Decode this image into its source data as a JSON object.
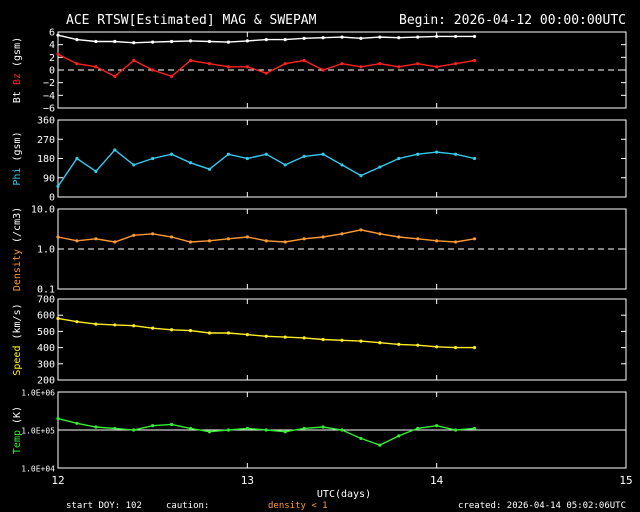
{
  "header": {
    "title": "ACE RTSW[Estimated] MAG & SWEPAM",
    "begin": "Begin: 2026-04-12 00:00:00UTC"
  },
  "footer": {
    "start_doy": "start DOY: 102",
    "caution": "caution:",
    "density_note": "density < 1",
    "created": "created: 2026-04-14 05:02:06UTC",
    "xlabel": "UTC(days)"
  },
  "colors": {
    "bt": "#ffffff",
    "bz": "#ff2020",
    "phi": "#33ccee",
    "density": "#ff9933",
    "speed": "#ffee22",
    "temp": "#33ee33",
    "axis": "#ffffff",
    "dash": "#ffffff"
  },
  "chart_data": [
    {
      "type": "line",
      "name": "mag",
      "ylabel_parts": [
        "Bt",
        "Bz",
        "(gsm)"
      ],
      "ylim": [
        -6,
        6
      ],
      "yticks": [
        -6,
        -4,
        -2,
        0,
        2,
        4,
        6
      ],
      "ytick_labels": [
        "−6",
        "−4",
        "−2",
        "0",
        "2",
        "4",
        "6"
      ],
      "reference_line": 0,
      "series": [
        {
          "name": "Bt",
          "x": [
            12.0,
            12.1,
            12.2,
            12.3,
            12.4,
            12.5,
            12.6,
            12.7,
            12.8,
            12.9,
            13.0,
            13.1,
            13.2,
            13.3,
            13.4,
            13.5,
            13.6,
            13.7,
            13.8,
            13.9,
            14.0,
            14.1,
            14.2
          ],
          "values": [
            5.5,
            4.8,
            4.5,
            4.5,
            4.3,
            4.4,
            4.5,
            4.6,
            4.5,
            4.4,
            4.6,
            4.8,
            4.8,
            5.0,
            5.1,
            5.2,
            5.0,
            5.2,
            5.1,
            5.2,
            5.3,
            5.3,
            5.3
          ]
        },
        {
          "name": "Bz",
          "x": [
            12.0,
            12.1,
            12.2,
            12.3,
            12.4,
            12.5,
            12.6,
            12.7,
            12.8,
            12.9,
            13.0,
            13.1,
            13.2,
            13.3,
            13.4,
            13.5,
            13.6,
            13.7,
            13.8,
            13.9,
            14.0,
            14.1,
            14.2
          ],
          "values": [
            2.5,
            1.0,
            0.5,
            -1.0,
            1.5,
            0.0,
            -1.0,
            1.5,
            1.0,
            0.5,
            0.5,
            -0.5,
            1.0,
            1.5,
            0.0,
            1.0,
            0.5,
            1.0,
            0.5,
            1.0,
            0.5,
            1.0,
            1.5
          ]
        }
      ]
    },
    {
      "type": "line",
      "name": "phi",
      "ylabel_parts": [
        "Phi",
        "(gsm)"
      ],
      "ylim": [
        0,
        360
      ],
      "yticks": [
        0,
        90,
        180,
        270,
        360
      ],
      "ytick_labels": [
        "0",
        "90",
        "180",
        "270",
        "360"
      ],
      "series": [
        {
          "name": "Phi",
          "x": [
            12.0,
            12.1,
            12.2,
            12.3,
            12.4,
            12.5,
            12.6,
            12.7,
            12.8,
            12.9,
            13.0,
            13.1,
            13.2,
            13.3,
            13.4,
            13.5,
            13.6,
            13.7,
            13.8,
            13.9,
            14.0,
            14.1,
            14.2
          ],
          "values": [
            50,
            180,
            120,
            220,
            150,
            180,
            200,
            160,
            130,
            200,
            180,
            200,
            150,
            190,
            200,
            150,
            100,
            140,
            180,
            200,
            210,
            200,
            180
          ]
        }
      ]
    },
    {
      "type": "line",
      "name": "density",
      "ylabel_parts": [
        "Density",
        "(/cm3)"
      ],
      "scale": "log",
      "ylim": [
        0.1,
        10.0
      ],
      "yticks": [
        0.1,
        1.0,
        10.0
      ],
      "ytick_labels": [
        "0.1",
        "1.0",
        "10.0"
      ],
      "reference_line": 1.0,
      "series": [
        {
          "name": "Density",
          "x": [
            12.0,
            12.1,
            12.2,
            12.3,
            12.4,
            12.5,
            12.6,
            12.7,
            12.8,
            12.9,
            13.0,
            13.1,
            13.2,
            13.3,
            13.4,
            13.5,
            13.6,
            13.7,
            13.8,
            13.9,
            14.0,
            14.1,
            14.2
          ],
          "values": [
            2.0,
            1.6,
            1.8,
            1.5,
            2.2,
            2.4,
            2.0,
            1.5,
            1.6,
            1.8,
            2.0,
            1.6,
            1.5,
            1.8,
            2.0,
            2.4,
            3.0,
            2.4,
            2.0,
            1.8,
            1.6,
            1.5,
            1.8
          ]
        }
      ]
    },
    {
      "type": "line",
      "name": "speed",
      "ylabel_parts": [
        "Speed",
        "(km/s)"
      ],
      "ylim": [
        200,
        700
      ],
      "yticks": [
        200,
        300,
        400,
        500,
        600,
        700
      ],
      "ytick_labels": [
        "200",
        "300",
        "400",
        "500",
        "600",
        "700"
      ],
      "series": [
        {
          "name": "Speed",
          "x": [
            12.0,
            12.1,
            12.2,
            12.3,
            12.4,
            12.5,
            12.6,
            12.7,
            12.8,
            12.9,
            13.0,
            13.1,
            13.2,
            13.3,
            13.4,
            13.5,
            13.6,
            13.7,
            13.8,
            13.9,
            14.0,
            14.1,
            14.2
          ],
          "values": [
            580,
            560,
            545,
            540,
            535,
            520,
            510,
            505,
            490,
            490,
            480,
            470,
            465,
            460,
            450,
            445,
            440,
            430,
            420,
            415,
            405,
            400,
            400
          ]
        }
      ]
    },
    {
      "type": "line",
      "name": "temp",
      "ylabel_parts": [
        "Temp",
        "(K)"
      ],
      "scale": "log",
      "ylim": [
        10000,
        1000000
      ],
      "yticks": [
        10000,
        100000,
        1000000
      ],
      "ytick_labels": [
        "1.0E+04",
        "1.0E+05",
        "1.0E+06"
      ],
      "reference_line": 100000,
      "series": [
        {
          "name": "Temp",
          "x": [
            12.0,
            12.1,
            12.2,
            12.3,
            12.4,
            12.5,
            12.6,
            12.7,
            12.8,
            12.9,
            13.0,
            13.1,
            13.2,
            13.3,
            13.4,
            13.5,
            13.6,
            13.7,
            13.8,
            13.9,
            14.0,
            14.1,
            14.2
          ],
          "values": [
            200000,
            150000,
            120000,
            110000,
            100000,
            130000,
            140000,
            110000,
            90000,
            100000,
            110000,
            100000,
            90000,
            110000,
            120000,
            100000,
            60000,
            40000,
            70000,
            110000,
            130000,
            100000,
            110000
          ]
        }
      ]
    }
  ],
  "xaxis": {
    "xlim": [
      12,
      15
    ],
    "ticks": [
      12,
      13,
      14,
      15
    ],
    "tick_labels": [
      "12",
      "13",
      "14",
      "15"
    ]
  }
}
